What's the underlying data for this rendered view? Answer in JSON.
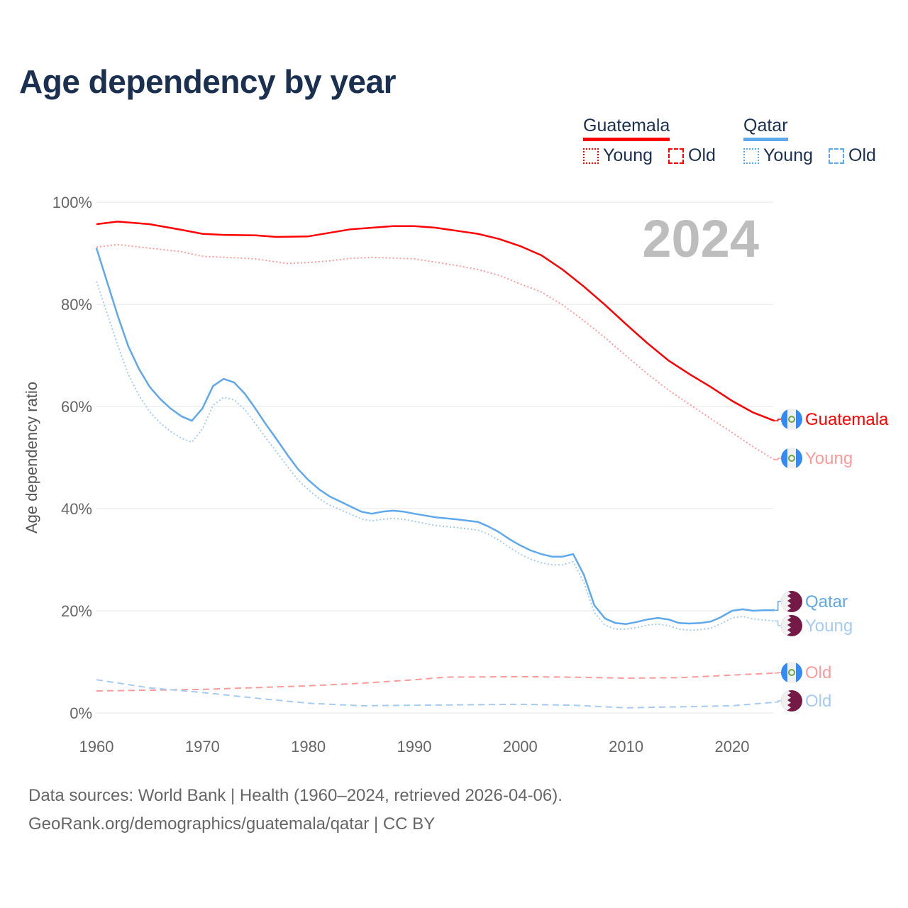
{
  "title": "Age dependency by year",
  "legend": {
    "groups": [
      {
        "name": "Guatemala",
        "color": "#ff0000",
        "light": "#ff9a9a",
        "young": "Young",
        "old": "Old"
      },
      {
        "name": "Qatar",
        "color": "#5fa8ec",
        "light": "#a6cbf2",
        "young": "Young",
        "old": "Old"
      }
    ]
  },
  "footer": {
    "line1": "Data sources: World Bank | Health (1960–2024, retrieved 2026-04-06).",
    "line2": "GeoRank.org/demographics/guatemala/qatar | CC BY"
  },
  "chart_data": {
    "type": "line",
    "title": "Age dependency by year",
    "year_label": "2024",
    "xlabel": "",
    "ylabel": "Age dependency ratio",
    "xlim": [
      1960,
      2024
    ],
    "ylim": [
      0,
      100
    ],
    "x_ticks": [
      "1960",
      "1970",
      "1980",
      "1990",
      "2000",
      "2010",
      "2020"
    ],
    "y_ticks": [
      "0%",
      "20%",
      "40%",
      "60%",
      "80%",
      "100%"
    ],
    "grid": true,
    "series": [
      {
        "name": "Guatemala",
        "label": "Guatemala",
        "country": "Guatemala",
        "style": "solid",
        "color": "#ff0000",
        "x": [
          1960,
          1962,
          1965,
          1968,
          1970,
          1972,
          1975,
          1977,
          1980,
          1982,
          1984,
          1986,
          1988,
          1990,
          1992,
          1994,
          1996,
          1998,
          2000,
          2002,
          2004,
          2006,
          2008,
          2010,
          2012,
          2014,
          2016,
          2018,
          2020,
          2022,
          2024
        ],
        "y": [
          95.7,
          96.2,
          95.7,
          94.6,
          93.8,
          93.6,
          93.5,
          93.2,
          93.3,
          94.0,
          94.7,
          95.0,
          95.3,
          95.3,
          95.0,
          94.4,
          93.8,
          92.8,
          91.4,
          89.6,
          86.8,
          83.5,
          79.9,
          76.1,
          72.4,
          69.0,
          66.3,
          63.8,
          61.1,
          58.8,
          57.2
        ]
      },
      {
        "name": "Guatemala Young",
        "label": "Young",
        "country": "Guatemala",
        "style": "dotted",
        "color": "#ff9a9a",
        "x": [
          1960,
          1962,
          1965,
          1968,
          1970,
          1975,
          1978,
          1980,
          1982,
          1984,
          1986,
          1990,
          1994,
          1996,
          1998,
          2000,
          2002,
          2004,
          2006,
          2008,
          2010,
          2012,
          2014,
          2016,
          2018,
          2020,
          2022,
          2024
        ],
        "y": [
          91.2,
          91.7,
          91.0,
          90.3,
          89.4,
          88.9,
          88.0,
          88.2,
          88.5,
          89.0,
          89.2,
          88.9,
          87.6,
          86.8,
          85.7,
          84.0,
          82.4,
          79.9,
          76.8,
          73.5,
          69.9,
          66.4,
          63.2,
          60.4,
          57.6,
          54.9,
          52.1,
          49.6
        ]
      },
      {
        "name": "Guatemala Old",
        "label": "Old",
        "country": "Guatemala",
        "style": "dashed",
        "color": "#ff9a9a",
        "x": [
          1960,
          1970,
          1980,
          1985,
          1990,
          1993,
          2000,
          2005,
          2010,
          2015,
          2020,
          2024
        ],
        "y": [
          4.3,
          4.6,
          5.3,
          5.8,
          6.5,
          7.0,
          7.1,
          7.0,
          6.8,
          6.9,
          7.4,
          7.8
        ]
      },
      {
        "name": "Qatar",
        "label": "Qatar",
        "country": "Qatar",
        "style": "solid",
        "color": "#5fa8ec",
        "x": [
          1960,
          1962,
          1963,
          1964,
          1965,
          1966,
          1967,
          1968,
          1969,
          1970,
          1971,
          1972,
          1973,
          1974,
          1975,
          1976,
          1977,
          1978,
          1979,
          1980,
          1981,
          1982,
          1983,
          1984,
          1985,
          1986,
          1987,
          1988,
          1989,
          1990,
          1992,
          1994,
          1996,
          1997,
          1998,
          1999,
          2000,
          2001,
          2002,
          2003,
          2004,
          2005,
          2006,
          2007,
          2008,
          2009,
          2010,
          2011,
          2012,
          2013,
          2014,
          2015,
          2016,
          2017,
          2018,
          2019,
          2020,
          2021,
          2022,
          2023,
          2024
        ],
        "y": [
          91.0,
          77.8,
          71.8,
          67.4,
          63.9,
          61.5,
          59.6,
          58.1,
          57.2,
          59.6,
          64.0,
          65.4,
          64.7,
          62.5,
          59.6,
          56.5,
          53.6,
          50.6,
          47.8,
          45.6,
          43.8,
          42.4,
          41.4,
          40.4,
          39.4,
          39.0,
          39.4,
          39.6,
          39.4,
          39.0,
          38.3,
          37.9,
          37.4,
          36.5,
          35.4,
          34.0,
          32.8,
          31.8,
          31.1,
          30.6,
          30.6,
          31.1,
          27.1,
          21.1,
          18.5,
          17.6,
          17.4,
          17.8,
          18.3,
          18.6,
          18.3,
          17.6,
          17.5,
          17.6,
          17.9,
          18.8,
          20.0,
          20.3,
          20.0,
          20.1,
          20.1
        ]
      },
      {
        "name": "Qatar Young",
        "label": "Young",
        "country": "Qatar",
        "style": "dotted",
        "color": "#a6cbf2",
        "x": [
          1960,
          1962,
          1963,
          1964,
          1965,
          1966,
          1967,
          1968,
          1969,
          1970,
          1971,
          1972,
          1973,
          1974,
          1975,
          1976,
          1977,
          1978,
          1979,
          1980,
          1981,
          1982,
          1983,
          1984,
          1985,
          1986,
          1987,
          1988,
          1989,
          1990,
          1992,
          1994,
          1996,
          1997,
          1998,
          1999,
          2000,
          2001,
          2002,
          2003,
          2004,
          2005,
          2006,
          2007,
          2008,
          2009,
          2010,
          2011,
          2012,
          2013,
          2014,
          2015,
          2016,
          2017,
          2018,
          2019,
          2020,
          2021,
          2022,
          2023,
          2024
        ],
        "y": [
          84.5,
          72.0,
          66.3,
          62.2,
          59.0,
          56.8,
          55.1,
          53.8,
          53.0,
          55.6,
          60.2,
          61.8,
          61.3,
          59.4,
          56.7,
          53.8,
          51.1,
          48.3,
          45.7,
          43.7,
          42.0,
          40.7,
          39.8,
          38.9,
          38.0,
          37.6,
          37.9,
          38.1,
          37.9,
          37.5,
          36.7,
          36.3,
          35.8,
          35.0,
          33.8,
          32.4,
          31.1,
          30.1,
          29.4,
          29.0,
          29.0,
          29.6,
          25.6,
          19.7,
          17.2,
          16.4,
          16.4,
          16.7,
          17.2,
          17.4,
          17.1,
          16.4,
          16.2,
          16.3,
          16.6,
          17.5,
          18.6,
          18.9,
          18.4,
          18.2,
          18.0
        ]
      },
      {
        "name": "Qatar Old",
        "label": "Old",
        "country": "Qatar",
        "style": "dashed",
        "color": "#a6cbf2",
        "x": [
          1960,
          1965,
          1970,
          1975,
          1980,
          1985,
          1990,
          2000,
          2005,
          2010,
          2015,
          2020,
          2024
        ],
        "y": [
          6.5,
          4.9,
          4.0,
          2.9,
          1.9,
          1.4,
          1.5,
          1.7,
          1.5,
          1.0,
          1.2,
          1.4,
          2.1
        ]
      }
    ]
  }
}
